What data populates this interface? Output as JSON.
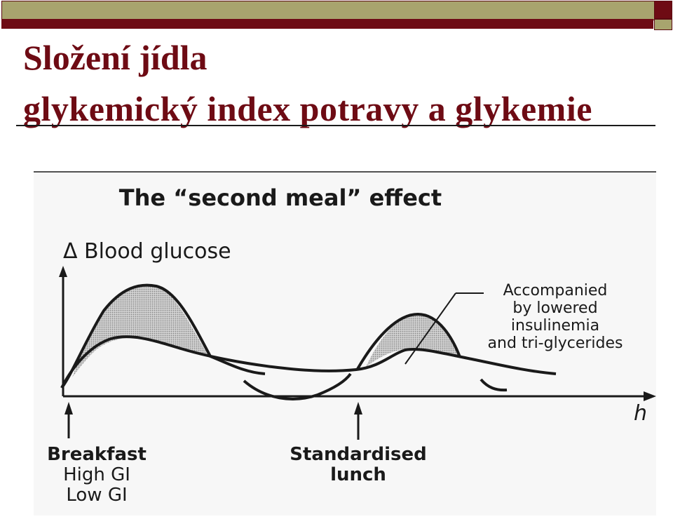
{
  "slide": {
    "title_line_1": "Složení jídla",
    "title_line_2": "glykemický  index potravy a glykemie"
  },
  "figure": {
    "heading": "The “second meal” effect",
    "y_label": "Δ Blood glucose",
    "x_label": "h",
    "annotation_lines": [
      "Accompanied",
      "by lowered",
      "insulinemia",
      "and tri-glycerides"
    ],
    "marker_breakfast_lines": [
      "Breakfast",
      "High GI",
      "Low GI"
    ],
    "marker_lunch_lines": [
      "Standardised",
      "lunch"
    ]
  },
  "colors": {
    "band_olive": "#a8a46e",
    "band_maroon": "#6e0b14",
    "title_color": "#6e0b14",
    "ink": "#1a1a1a",
    "shade": "#b9b9b9"
  }
}
